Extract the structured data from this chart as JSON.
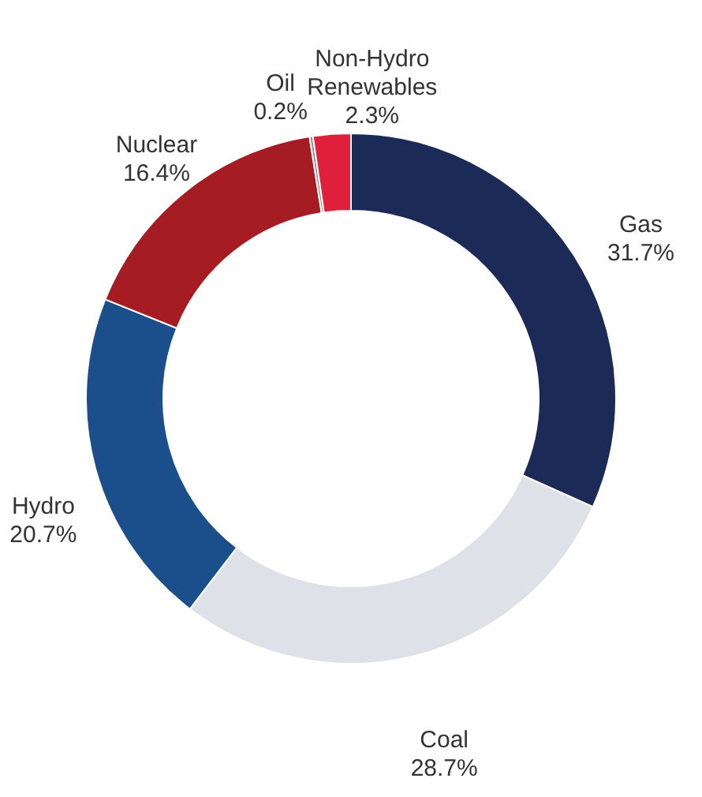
{
  "chart_data": {
    "type": "donut",
    "categories": [
      "Gas",
      "Coal",
      "Hydro",
      "Nuclear",
      "Oil",
      "Non-Hydro Renewables"
    ],
    "values": [
      31.7,
      28.7,
      20.7,
      16.4,
      0.2,
      2.3
    ],
    "value_labels": [
      "31.7%",
      "28.7%",
      "20.7%",
      "16.4%",
      "0.2%",
      "2.3%"
    ],
    "colors": [
      "#1b2a56",
      "#dfe1e8",
      "#1b4f8c",
      "#a51c22",
      "#8a8a8a",
      "#e0203a"
    ]
  }
}
